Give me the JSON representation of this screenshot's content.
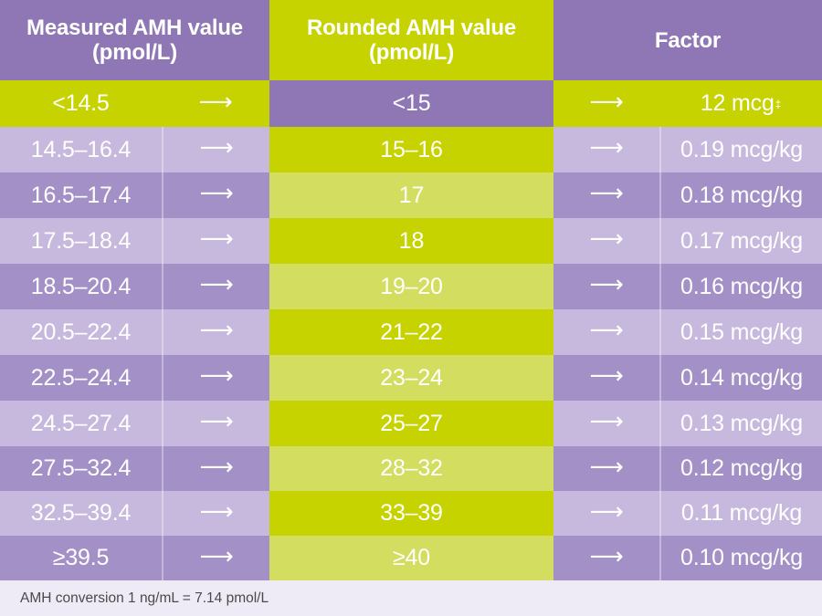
{
  "colors": {
    "purple_dark": "#8f77b5",
    "purple_light": "#c7b9de",
    "green_bright": "#c6d300",
    "green_light": "#d3dd60",
    "footer_bg": "#efebf6",
    "text": "#ffffff"
  },
  "header": {
    "measured": "Measured AMH value\n(pmol/L)",
    "rounded": "Rounded AMH value\n(pmol/L)",
    "factor": "Factor"
  },
  "arrow_glyph": "⟶",
  "first_row": {
    "measured": "<14.5",
    "rounded": "<15",
    "factor": "12 mcg",
    "factor_mark": "‡"
  },
  "rows": [
    {
      "measured": "14.5–16.4",
      "rounded": "15–16",
      "factor": "0.19 mcg/kg"
    },
    {
      "measured": "16.5–17.4",
      "rounded": "17",
      "factor": "0.18 mcg/kg"
    },
    {
      "measured": "17.5–18.4",
      "rounded": "18",
      "factor": "0.17 mcg/kg"
    },
    {
      "measured": "18.5–20.4",
      "rounded": "19–20",
      "factor": "0.16 mcg/kg"
    },
    {
      "measured": "20.5–22.4",
      "rounded": "21–22",
      "factor": "0.15 mcg/kg"
    },
    {
      "measured": "22.5–24.4",
      "rounded": "23–24",
      "factor": "0.14 mcg/kg"
    },
    {
      "measured": "24.5–27.4",
      "rounded": "25–27",
      "factor": "0.13 mcg/kg"
    },
    {
      "measured": "27.5–32.4",
      "rounded": "28–32",
      "factor": "0.12 mcg/kg"
    },
    {
      "measured": "32.5–39.4",
      "rounded": "33–39",
      "factor": "0.11 mcg/kg"
    },
    {
      "measured": "≥39.5",
      "rounded": "≥40",
      "factor": "0.10 mcg/kg"
    }
  ],
  "footer": "AMH conversion 1 ng/mL = 7.14 pmol/L"
}
